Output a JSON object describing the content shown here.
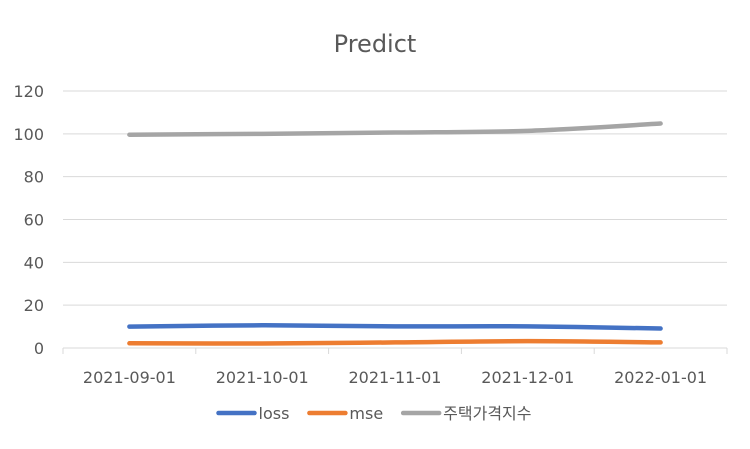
{
  "chart_data": {
    "type": "line",
    "title": "Predict",
    "categories": [
      "2021-09-01",
      "2021-10-01",
      "2021-11-01",
      "2021-12-01",
      "2022-01-01"
    ],
    "y_ticks": [
      "0",
      "20",
      "40",
      "60",
      "80",
      "100",
      "120"
    ],
    "ylim": [
      0,
      120
    ],
    "grid": true,
    "legend_position": "bottom",
    "series": [
      {
        "name": "loss",
        "color": "#4472C4",
        "values": [
          10.0,
          10.6,
          10.1,
          10.1,
          9.1
        ]
      },
      {
        "name": "mse",
        "color": "#ED7D31",
        "values": [
          2.2,
          2.1,
          2.6,
          3.2,
          2.6
        ]
      },
      {
        "name": "주택가격지수",
        "color": "#A5A5A5",
        "values": [
          99.6,
          100.0,
          100.6,
          101.4,
          104.8
        ]
      }
    ]
  }
}
